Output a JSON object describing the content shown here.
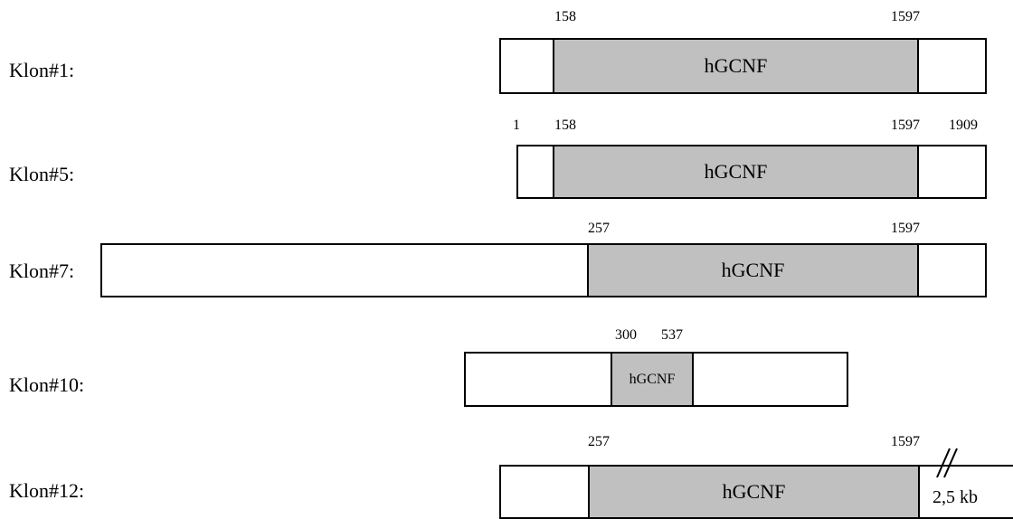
{
  "clones": [
    {
      "label": "Klon#1:",
      "cds_label": "hGCNF",
      "positions": {
        "start": "158",
        "end": "1597"
      }
    },
    {
      "label": "Klon#5:",
      "cds_label": "hGCNF",
      "positions": {
        "first": "1",
        "start": "158",
        "end": "1597",
        "last": "1909"
      }
    },
    {
      "label": "Klon#7:",
      "cds_label": "hGCNF",
      "positions": {
        "start": "257",
        "end": "1597"
      }
    },
    {
      "label": "Klon#10:",
      "cds_label": "hGCNF",
      "positions": {
        "start": "300",
        "end": "537"
      }
    },
    {
      "label": "Klon#12:",
      "cds_label": "hGCNF",
      "positions": {
        "start": "257",
        "end": "1597"
      },
      "extension_label": "2,5 kb"
    }
  ]
}
